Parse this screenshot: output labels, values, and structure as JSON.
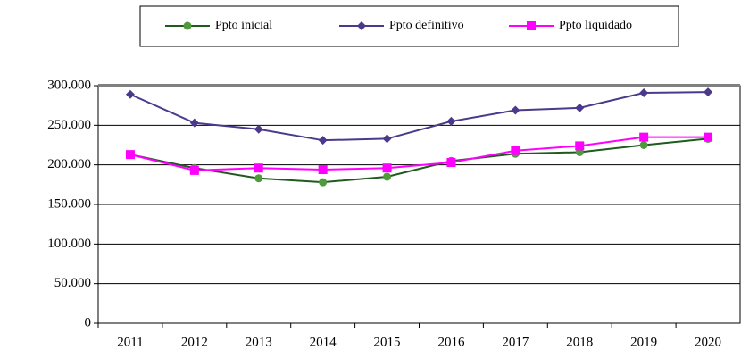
{
  "chart_data": {
    "type": "line",
    "categories": [
      "2011",
      "2012",
      "2013",
      "2014",
      "2015",
      "2016",
      "2017",
      "2018",
      "2019",
      "2020"
    ],
    "series": [
      {
        "name": "Ppto inicial",
        "color": "#1f5a1f",
        "marker": "circle",
        "marker_color": "#4f9a3c",
        "values": [
          213000,
          196000,
          183000,
          178000,
          185000,
          205000,
          214000,
          216000,
          225000,
          233000
        ]
      },
      {
        "name": "Ppto definitivo",
        "color": "#4b3a8c",
        "marker": "diamond",
        "marker_color": "#4b3a8c",
        "values": [
          289000,
          253000,
          245000,
          231000,
          233000,
          255000,
          269000,
          272000,
          291000,
          292000
        ]
      },
      {
        "name": "Ppto liquidado",
        "color": "#ff00ff",
        "marker": "square",
        "marker_color": "#ff00ff",
        "values": [
          213000,
          193000,
          196000,
          194000,
          196000,
          203000,
          218000,
          224000,
          235000,
          235000
        ]
      }
    ],
    "ylim": [
      0,
      300000
    ],
    "yticks": [
      0,
      {
        "value": 50000,
        "label": "50.000"
      },
      {
        "value": 100000,
        "label": "100.000"
      },
      {
        "value": 150000,
        "label": "150.000"
      },
      {
        "value": 200000,
        "label": "200.000"
      },
      {
        "value": 250000,
        "label": "250.000"
      },
      {
        "value": 300000,
        "label": "300.000"
      }
    ],
    "grid": true,
    "legend": "top"
  }
}
